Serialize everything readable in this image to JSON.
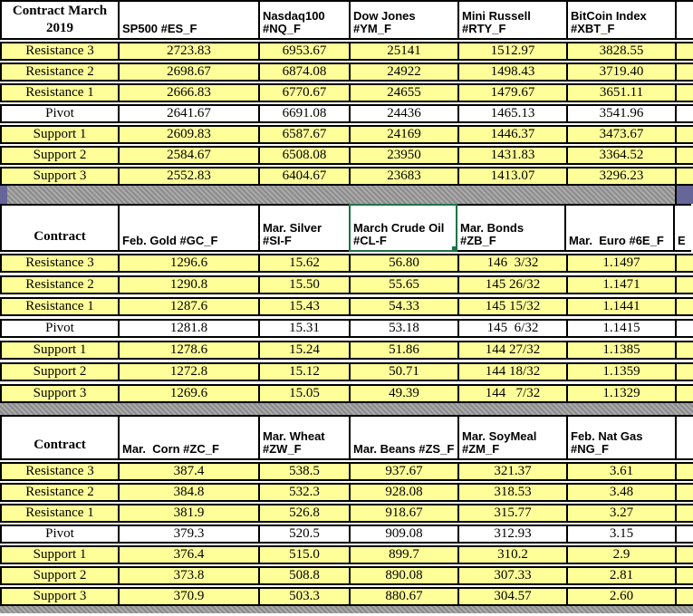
{
  "app": {
    "kind": "spreadsheet",
    "description": "Futures pivot point levels"
  },
  "colors": {
    "row_fill": "#FFFF99",
    "pivot_fill": "#FFFFFF",
    "grid_border": "#000000",
    "separator_gray": "#9A9A9A",
    "separator_accent": "#666699",
    "selection_green": "#1F7245"
  },
  "row_labels": [
    "Resistance 3",
    "Resistance 2",
    "Resistance 1",
    "Pivot",
    "Support 1",
    "Support 2",
    "Support 3"
  ],
  "sections": [
    {
      "title": "Contract March 2019",
      "partial_text": "",
      "columns": [
        "SP500 #ES_F",
        "Nasdaq100\n#NQ_F",
        "Dow Jones\n#YM_F",
        "Mini Russell\n#RTY_F",
        "BitCoin Index\n#XBT_F"
      ],
      "rows": [
        {
          "label": "Resistance 3",
          "pivot": false,
          "values": [
            "2723.83",
            "6953.67",
            "25141",
            "1512.97",
            "3828.55"
          ]
        },
        {
          "label": "Resistance 2",
          "pivot": false,
          "values": [
            "2698.67",
            "6874.08",
            "24922",
            "1498.43",
            "3719.40"
          ]
        },
        {
          "label": "Resistance 1",
          "pivot": false,
          "values": [
            "2666.83",
            "6770.67",
            "24655",
            "1479.67",
            "3651.11"
          ]
        },
        {
          "label": "Pivot",
          "pivot": true,
          "values": [
            "2641.67",
            "6691.08",
            "24436",
            "1465.13",
            "3541.96"
          ]
        },
        {
          "label": "Support 1",
          "pivot": false,
          "values": [
            "2609.83",
            "6587.67",
            "24169",
            "1446.37",
            "3473.67"
          ]
        },
        {
          "label": "Support 2",
          "pivot": false,
          "values": [
            "2584.67",
            "6508.08",
            "23950",
            "1431.83",
            "3364.52"
          ]
        },
        {
          "label": "Support 3",
          "pivot": false,
          "values": [
            "2552.83",
            "6404.67",
            "23683",
            "1413.07",
            "3296.23"
          ]
        }
      ]
    },
    {
      "title": "Contract",
      "partial_text": "E",
      "selected_column_index": 2,
      "columns": [
        "Feb. Gold #GC_F",
        "Mar. Silver\n#SI-F",
        "March Crude Oil\n#CL-F",
        "Mar. Bonds  #ZB_F",
        "Mar.  Euro #6E_F"
      ],
      "rows": [
        {
          "label": "Resistance 3",
          "pivot": false,
          "values": [
            "1296.6",
            "15.62",
            "56.80",
            "146  3/32",
            "1.1497"
          ]
        },
        {
          "label": "Resistance 2",
          "pivot": false,
          "values": [
            "1290.8",
            "15.50",
            "55.65",
            "145 26/32",
            "1.1471"
          ]
        },
        {
          "label": "Resistance 1",
          "pivot": false,
          "values": [
            "1287.6",
            "15.43",
            "54.33",
            "145 15/32",
            "1.1441"
          ]
        },
        {
          "label": "Pivot",
          "pivot": true,
          "values": [
            "1281.8",
            "15.31",
            "53.18",
            "145  6/32",
            "1.1415"
          ]
        },
        {
          "label": "Support 1",
          "pivot": false,
          "values": [
            "1278.6",
            "15.24",
            "51.86",
            "144 27/32",
            "1.1385"
          ]
        },
        {
          "label": "Support 2",
          "pivot": false,
          "values": [
            "1272.8",
            "15.12",
            "50.71",
            "144 18/32",
            "1.1359"
          ]
        },
        {
          "label": "Support 3",
          "pivot": false,
          "values": [
            "1269.6",
            "15.05",
            "49.39",
            "144   7/32",
            "1.1329"
          ]
        }
      ]
    },
    {
      "title": "Contract",
      "partial_text": "",
      "columns": [
        "Mar.  Corn #ZC_F",
        "Mar. Wheat\n#ZW_F",
        "Mar. Beans #ZS_F",
        "Mar. SoyMeal\n#ZM_F",
        "Feb. Nat Gas\n#NG_F"
      ],
      "rows": [
        {
          "label": "Resistance 3",
          "pivot": false,
          "values": [
            "387.4",
            "538.5",
            "937.67",
            "321.37",
            "3.61"
          ]
        },
        {
          "label": "Resistance 2",
          "pivot": false,
          "values": [
            "384.8",
            "532.3",
            "928.08",
            "318.53",
            "3.48"
          ]
        },
        {
          "label": "Resistance 1",
          "pivot": false,
          "values": [
            "381.9",
            "526.8",
            "918.67",
            "315.77",
            "3.27"
          ]
        },
        {
          "label": "Pivot",
          "pivot": true,
          "values": [
            "379.3",
            "520.5",
            "909.08",
            "312.93",
            "3.15"
          ]
        },
        {
          "label": "Support 1",
          "pivot": false,
          "values": [
            "376.4",
            "515.0",
            "899.7",
            "310.2",
            "2.9"
          ]
        },
        {
          "label": "Support 2",
          "pivot": false,
          "values": [
            "373.8",
            "508.8",
            "890.08",
            "307.33",
            "2.81"
          ]
        },
        {
          "label": "Support 3",
          "pivot": false,
          "values": [
            "370.9",
            "503.3",
            "880.67",
            "304.57",
            "2.60"
          ]
        }
      ]
    }
  ]
}
